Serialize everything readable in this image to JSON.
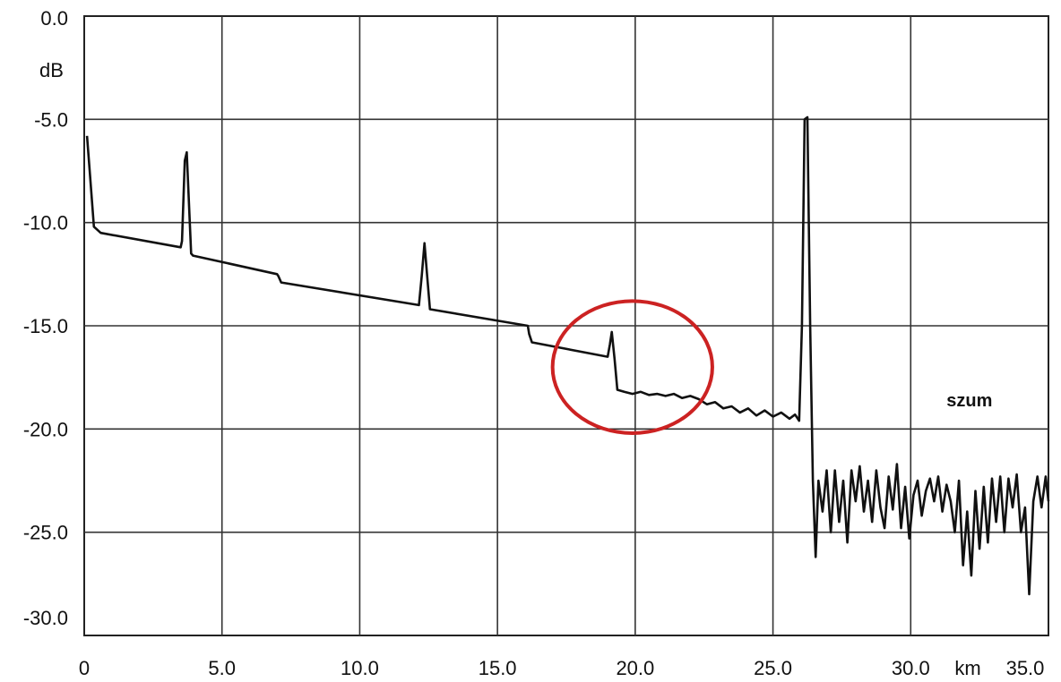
{
  "chart_data": {
    "type": "line",
    "title": "",
    "xlabel": "km",
    "ylabel": "dB",
    "xlim": [
      0,
      35
    ],
    "ylim": [
      -30,
      0
    ],
    "grid": true,
    "x_ticks": [
      0,
      5,
      10,
      15,
      20,
      25,
      30,
      35
    ],
    "x_tick_labels": [
      "0",
      "5.0",
      "10.0",
      "15.0",
      "20.0",
      "25.0",
      "30.0",
      "35.0"
    ],
    "y_ticks": [
      0,
      -5,
      -10,
      -15,
      -20,
      -25,
      -30
    ],
    "y_tick_labels": [
      "0.0",
      "-5.0",
      "-10.0",
      "-15.0",
      "-20.0",
      "-25.0",
      "-30.0"
    ],
    "annotations": [
      {
        "text": "szum",
        "x": 31.3,
        "y": -18.9
      }
    ],
    "highlight_circle": {
      "cx": 19.9,
      "cy": -17.0,
      "rx": 2.9,
      "ry": 3.2,
      "color": "#cc2222"
    },
    "line_color": "#111111",
    "series": [
      {
        "values": [
          [
            0.1,
            -5.8
          ],
          [
            0.2,
            -7.5
          ],
          [
            0.35,
            -10.2
          ],
          [
            0.6,
            -10.5
          ],
          [
            3.5,
            -11.2
          ],
          [
            3.55,
            -10.9
          ],
          [
            3.65,
            -7.0
          ],
          [
            3.72,
            -6.6
          ],
          [
            3.8,
            -9.0
          ],
          [
            3.88,
            -11.5
          ],
          [
            3.95,
            -11.6
          ],
          [
            7.0,
            -12.5
          ],
          [
            7.05,
            -12.6
          ],
          [
            7.15,
            -12.9
          ],
          [
            12.15,
            -14.0
          ],
          [
            12.25,
            -12.6
          ],
          [
            12.35,
            -11.0
          ],
          [
            12.45,
            -12.6
          ],
          [
            12.55,
            -14.2
          ],
          [
            16.1,
            -15.0
          ],
          [
            16.15,
            -15.4
          ],
          [
            16.25,
            -15.8
          ],
          [
            19.0,
            -16.5
          ],
          [
            19.08,
            -15.9
          ],
          [
            19.15,
            -15.3
          ],
          [
            19.25,
            -16.6
          ],
          [
            19.35,
            -18.1
          ],
          [
            19.6,
            -18.2
          ],
          [
            19.9,
            -18.3
          ],
          [
            20.2,
            -18.2
          ],
          [
            20.5,
            -18.35
          ],
          [
            20.8,
            -18.3
          ],
          [
            21.1,
            -18.4
          ],
          [
            21.4,
            -18.3
          ],
          [
            21.7,
            -18.5
          ],
          [
            22.0,
            -18.4
          ],
          [
            22.3,
            -18.55
          ],
          [
            22.6,
            -18.8
          ],
          [
            22.9,
            -18.7
          ],
          [
            23.2,
            -19.0
          ],
          [
            23.5,
            -18.9
          ],
          [
            23.8,
            -19.2
          ],
          [
            24.1,
            -19.0
          ],
          [
            24.4,
            -19.35
          ],
          [
            24.7,
            -19.1
          ],
          [
            25.0,
            -19.4
          ],
          [
            25.3,
            -19.2
          ],
          [
            25.6,
            -19.5
          ],
          [
            25.8,
            -19.3
          ],
          [
            25.95,
            -19.6
          ],
          [
            26.05,
            -15.0
          ],
          [
            26.15,
            -5.0
          ],
          [
            26.25,
            -4.9
          ],
          [
            26.35,
            -15.0
          ],
          [
            26.45,
            -22.5
          ],
          [
            26.55,
            -26.2
          ],
          [
            26.65,
            -22.5
          ],
          [
            26.8,
            -24.0
          ],
          [
            26.95,
            -22.0
          ],
          [
            27.1,
            -25.0
          ],
          [
            27.25,
            -22.0
          ],
          [
            27.4,
            -24.5
          ],
          [
            27.55,
            -22.5
          ],
          [
            27.7,
            -25.5
          ],
          [
            27.85,
            -22.0
          ],
          [
            28.0,
            -23.5
          ],
          [
            28.15,
            -21.8
          ],
          [
            28.3,
            -24.0
          ],
          [
            28.45,
            -22.5
          ],
          [
            28.6,
            -24.5
          ],
          [
            28.75,
            -22.0
          ],
          [
            28.9,
            -23.8
          ],
          [
            29.05,
            -24.8
          ],
          [
            29.2,
            -22.3
          ],
          [
            29.35,
            -23.9
          ],
          [
            29.5,
            -21.7
          ],
          [
            29.65,
            -24.8
          ],
          [
            29.8,
            -22.8
          ],
          [
            29.95,
            -25.3
          ],
          [
            30.1,
            -23.2
          ],
          [
            30.25,
            -22.5
          ],
          [
            30.4,
            -24.2
          ],
          [
            30.55,
            -23.0
          ],
          [
            30.7,
            -22.4
          ],
          [
            30.85,
            -23.5
          ],
          [
            31.0,
            -22.3
          ],
          [
            31.15,
            -24.0
          ],
          [
            31.3,
            -22.7
          ],
          [
            31.45,
            -23.5
          ],
          [
            31.6,
            -25.0
          ],
          [
            31.75,
            -22.5
          ],
          [
            31.9,
            -26.6
          ],
          [
            32.05,
            -24.0
          ],
          [
            32.2,
            -27.1
          ],
          [
            32.35,
            -23.0
          ],
          [
            32.5,
            -25.8
          ],
          [
            32.65,
            -22.8
          ],
          [
            32.8,
            -25.5
          ],
          [
            32.95,
            -22.4
          ],
          [
            33.1,
            -24.5
          ],
          [
            33.25,
            -22.3
          ],
          [
            33.4,
            -25.0
          ],
          [
            33.55,
            -22.4
          ],
          [
            33.7,
            -23.8
          ],
          [
            33.85,
            -22.2
          ],
          [
            34.0,
            -25.0
          ],
          [
            34.15,
            -23.8
          ],
          [
            34.3,
            -28.0
          ],
          [
            34.45,
            -23.5
          ],
          [
            34.6,
            -22.3
          ],
          [
            34.75,
            -23.8
          ],
          [
            34.9,
            -22.3
          ],
          [
            35.0,
            -23.5
          ]
        ]
      }
    ]
  }
}
